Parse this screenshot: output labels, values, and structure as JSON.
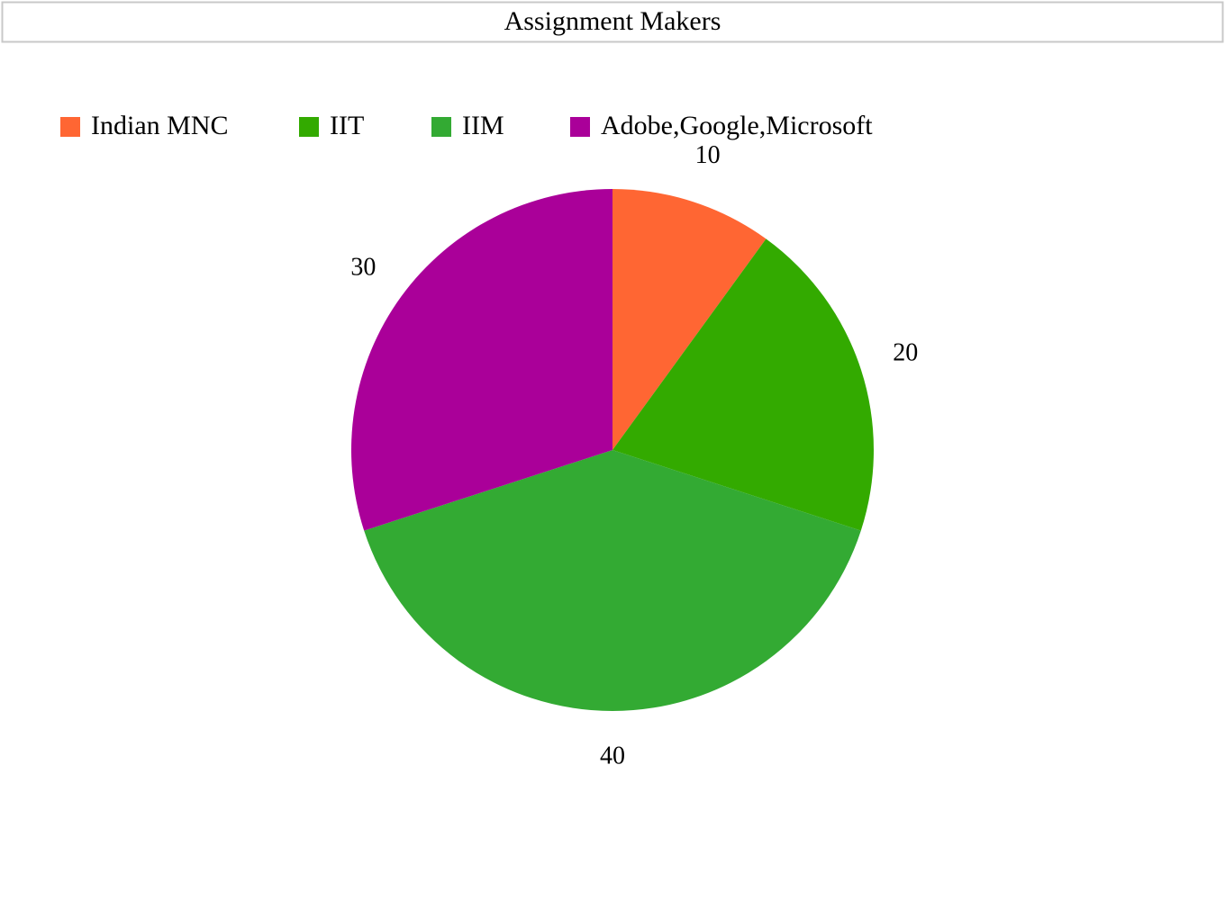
{
  "chart_data": {
    "type": "pie",
    "title": "Assignment Makers",
    "categories": [
      "Indian MNC",
      "IIT",
      "IIM",
      "Adobe,Google,Microsoft"
    ],
    "values": [
      10,
      20,
      40,
      30
    ],
    "colors": [
      "#ff6633",
      "#33aa00",
      "#33aa33",
      "#aa0099"
    ],
    "legend": "top-left"
  }
}
